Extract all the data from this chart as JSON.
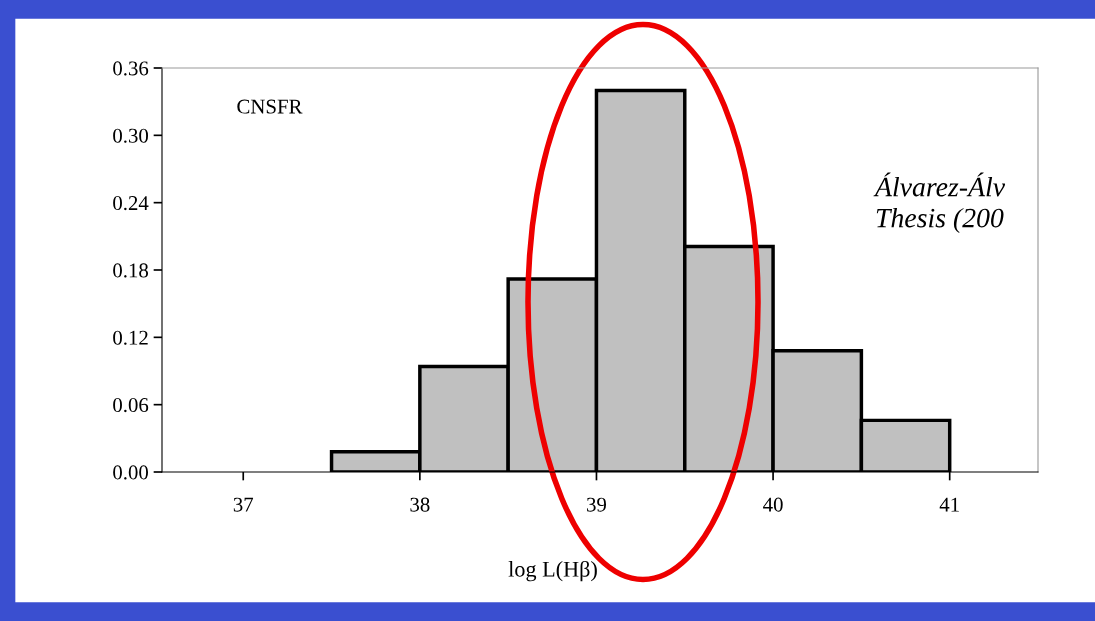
{
  "chart_data": {
    "type": "histogram",
    "xlabel": "log L(Hβ)",
    "annotations": [
      "CNSFR",
      "Álvarez-Álv\nThesis (200"
    ],
    "bins": [
      37.5,
      38,
      38.5,
      39,
      39.5,
      40,
      40.5,
      41
    ],
    "values": [
      0.018,
      0.094,
      0.172,
      0.34,
      0.201,
      0.108,
      0.046
    ],
    "color": "#c0c0c0",
    "xlim": [
      36.54,
      41.5
    ],
    "xticks": [
      37,
      38,
      39,
      40,
      41
    ],
    "ylim": [
      0,
      0.36
    ],
    "yticks": [
      {
        "value": 0,
        "label": "0.00"
      },
      {
        "value": 0.06,
        "label": "0.06"
      },
      {
        "value": 0.12,
        "label": "0.12"
      },
      {
        "value": 0.18,
        "label": "0.18"
      },
      {
        "value": 0.24,
        "label": "0.24"
      },
      {
        "value": 0.3,
        "label": "0.30"
      },
      {
        "value": 0.36,
        "label": "0.36"
      }
    ],
    "grid": false,
    "legend": false
  }
}
